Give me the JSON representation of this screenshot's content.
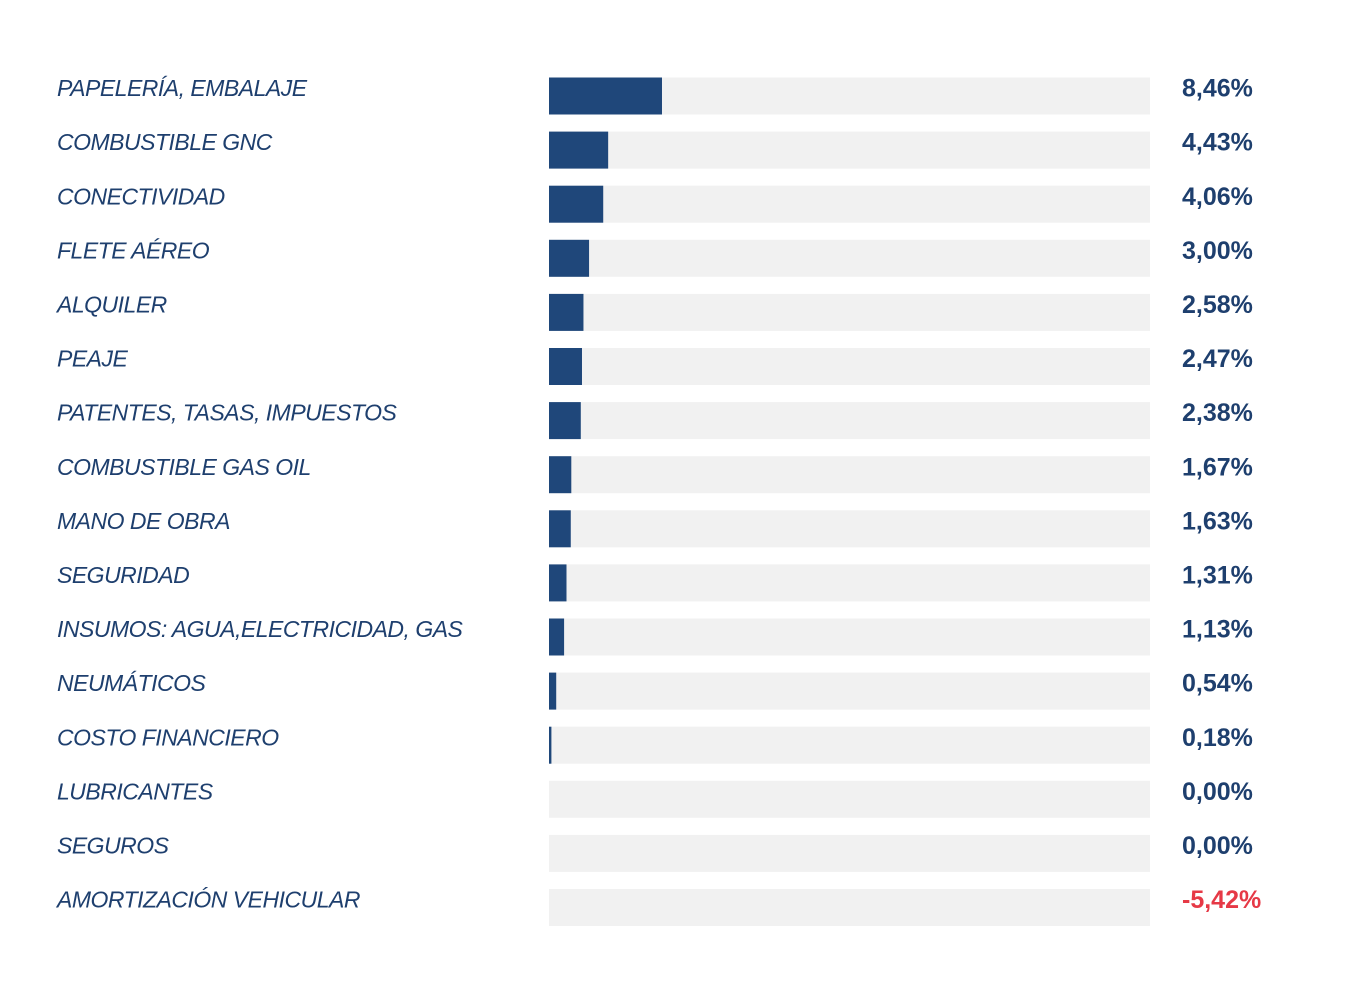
{
  "chart_data": {
    "type": "bar",
    "orientation": "horizontal",
    "categories": [
      "PAPELERÍA, EMBALAJE",
      "COMBUSTIBLE GNC",
      "CONECTIVIDAD",
      "FLETE AÉREO",
      "ALQUILER",
      "PEAJE",
      "PATENTES, TASAS, IMPUESTOS",
      "COMBUSTIBLE GAS OIL",
      "MANO DE OBRA",
      "SEGURIDAD",
      "INSUMOS: AGUA,ELECTRICIDAD, GAS",
      "NEUMÁTICOS",
      "COSTO FINANCIERO",
      "LUBRICANTES",
      "SEGUROS",
      "AMORTIZACIÓN VEHICULAR"
    ],
    "values": [
      8.46,
      4.43,
      4.06,
      3.0,
      2.58,
      2.47,
      2.38,
      1.67,
      1.63,
      1.31,
      1.13,
      0.54,
      0.18,
      0.0,
      0.0,
      -5.42
    ],
    "value_labels": [
      "8,46%",
      "4,43%",
      "4,06%",
      "3,00%",
      "2,58%",
      "2,47%",
      "2,38%",
      "1,67%",
      "1,63%",
      "1,31%",
      "1,13%",
      "0,54%",
      "0,18%",
      "0,00%",
      "0,00%",
      "-5,42%"
    ],
    "color": "#1f477a",
    "track_color": "#f1f1f1",
    "label_color": "#1e3f6e",
    "negative_color": "#e63946",
    "xlim": [
      0,
      45
    ]
  }
}
